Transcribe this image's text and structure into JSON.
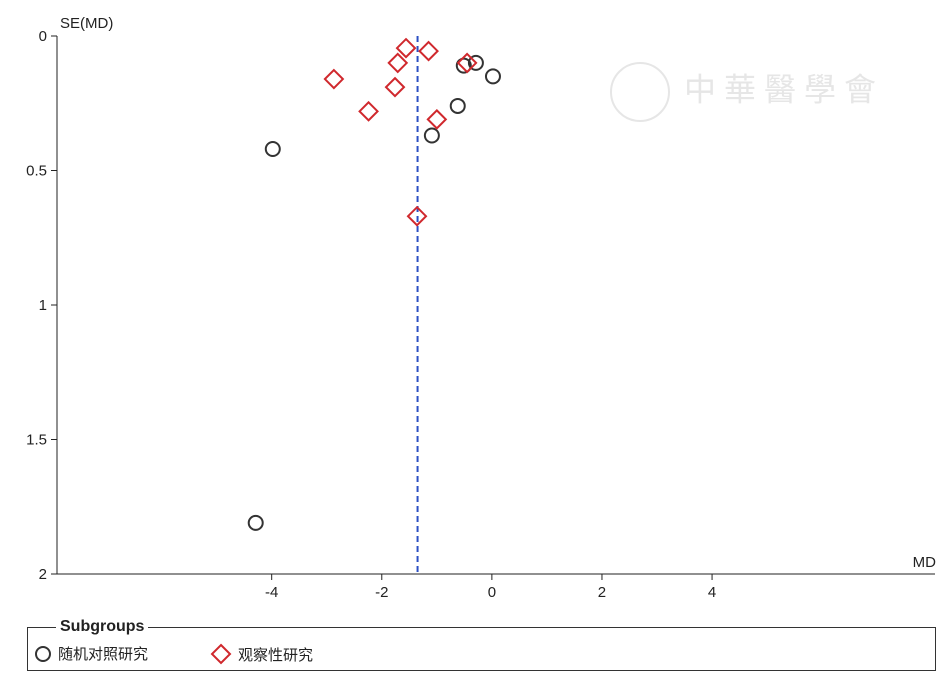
{
  "chart_data": {
    "type": "scatter",
    "title": "",
    "xlabel": "MD",
    "ylabel": "SE(MD)",
    "xlim": [
      -7.9,
      8.05
    ],
    "ylim": [
      0,
      2
    ],
    "y_reversed": true,
    "grid": false,
    "x_ticks": [
      -4,
      -2,
      0,
      2,
      4
    ],
    "x_tick_labels": [
      "-4",
      "-2",
      "0",
      "2",
      "4"
    ],
    "y_ticks": [
      0,
      0.5,
      1,
      1.5,
      2
    ],
    "y_tick_labels": [
      "0",
      "0.5",
      "1",
      "1.5",
      "2"
    ],
    "reference_line": {
      "x": -1.35,
      "style": "dashed",
      "color": "#2b4fc4"
    },
    "legend": {
      "title": "Subgroups",
      "placement": "bottom"
    },
    "series": [
      {
        "name": "随机对照研究",
        "marker": "circle",
        "color": "#333333",
        "points": [
          [
            -0.51,
            0.11
          ],
          [
            -0.29,
            0.1
          ],
          [
            0.02,
            0.15
          ],
          [
            -0.62,
            0.26
          ],
          [
            -1.09,
            0.37
          ],
          [
            -3.98,
            0.42
          ],
          [
            -4.29,
            1.81
          ]
        ]
      },
      {
        "name": "观察性研究",
        "marker": "diamond",
        "color": "#d0282d",
        "points": [
          [
            -2.87,
            0.16
          ],
          [
            -2.24,
            0.28
          ],
          [
            -1.76,
            0.19
          ],
          [
            -1.71,
            0.1
          ],
          [
            -1.56,
            0.045
          ],
          [
            -1.15,
            0.056
          ],
          [
            -1.0,
            0.31
          ],
          [
            -0.45,
            0.1
          ],
          [
            -1.36,
            0.67
          ]
        ]
      }
    ]
  },
  "watermark": "中華醫學會"
}
